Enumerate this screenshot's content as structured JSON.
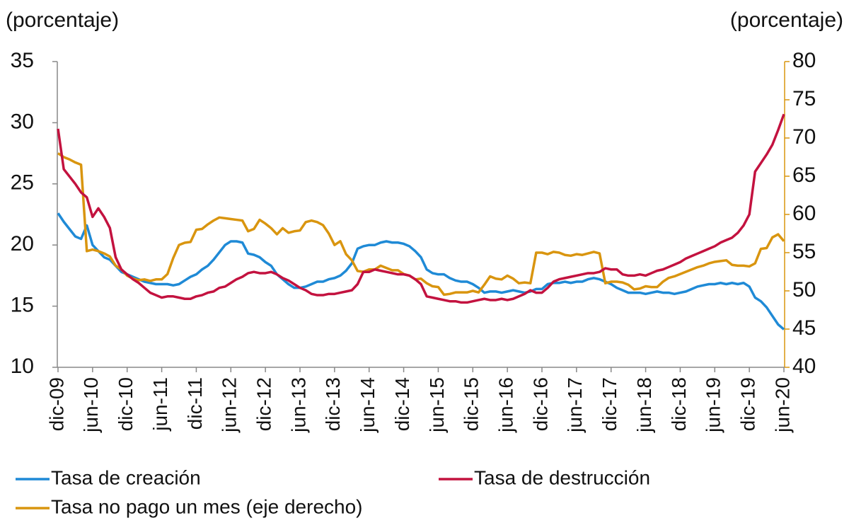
{
  "chart_data": {
    "type": "line",
    "y_label": "(porcentaje)",
    "y2_label": "(porcentaje)",
    "categories": [
      "dic-09",
      null,
      null,
      null,
      null,
      null,
      "jun-10",
      null,
      null,
      null,
      null,
      null,
      "dic-10",
      null,
      null,
      null,
      null,
      null,
      "jun-11",
      null,
      null,
      null,
      null,
      null,
      "dic-11",
      null,
      null,
      null,
      null,
      null,
      "jun-12",
      null,
      null,
      null,
      null,
      null,
      "dic-12",
      null,
      null,
      null,
      null,
      null,
      "jun-13",
      null,
      null,
      null,
      null,
      null,
      "dic-13",
      null,
      null,
      null,
      null,
      null,
      "jun-14",
      null,
      null,
      null,
      null,
      null,
      "dic-14",
      null,
      null,
      null,
      null,
      null,
      "jun-15",
      null,
      null,
      null,
      null,
      null,
      "dic-15",
      null,
      null,
      null,
      null,
      null,
      "jun-16",
      null,
      null,
      null,
      null,
      null,
      "dic-16",
      null,
      null,
      null,
      null,
      null,
      "jun-17",
      null,
      null,
      null,
      null,
      null,
      "dic-17",
      null,
      null,
      null,
      null,
      null,
      "jun-18",
      null,
      null,
      null,
      null,
      null,
      "dic-18",
      null,
      null,
      null,
      null,
      null,
      "jun-19",
      null,
      null,
      null,
      null,
      null,
      "dic-19",
      null,
      null,
      null,
      null,
      null,
      "jun-20"
    ],
    "series": [
      {
        "name": "Tasa de creación",
        "color": "#1f8ad6",
        "values": [
          22.6,
          21.9,
          21.3,
          20.7,
          20.5,
          21.6,
          20.0,
          19.5,
          19.0,
          18.8,
          18.3,
          17.8,
          17.6,
          17.4,
          17.2,
          17.0,
          16.9,
          16.8,
          16.8,
          16.8,
          16.7,
          16.8,
          17.1,
          17.4,
          17.6,
          18.0,
          18.3,
          18.8,
          19.4,
          20.0,
          20.3,
          20.3,
          20.2,
          19.3,
          19.2,
          19.0,
          18.6,
          18.3,
          17.6,
          17.2,
          16.8,
          16.5,
          16.5,
          16.6,
          16.8,
          17.0,
          17.0,
          17.2,
          17.3,
          17.5,
          17.9,
          18.5,
          19.7,
          19.9,
          20.0,
          20.0,
          20.2,
          20.3,
          20.2,
          20.2,
          20.1,
          19.9,
          19.5,
          19.0,
          18.0,
          17.7,
          17.6,
          17.6,
          17.3,
          17.1,
          17.0,
          17.0,
          16.8,
          16.5,
          16.1,
          16.2,
          16.2,
          16.1,
          16.2,
          16.3,
          16.2,
          16.1,
          16.2,
          16.4,
          16.4,
          16.8,
          16.9,
          16.9,
          17.0,
          16.9,
          17.0,
          17.0,
          17.2,
          17.3,
          17.2,
          17.0,
          16.8,
          16.5,
          16.3,
          16.1,
          16.1,
          16.1,
          16.0,
          16.1,
          16.2,
          16.1,
          16.1,
          16.0,
          16.1,
          16.2,
          16.4,
          16.6,
          16.7,
          16.8,
          16.8,
          16.9,
          16.8,
          16.9,
          16.8,
          16.9,
          16.6,
          15.7,
          15.4,
          14.9,
          14.2,
          13.5,
          13.1
        ]
      },
      {
        "name": "Tasa de destrucción",
        "color": "#c3123f",
        "values": [
          29.5,
          26.2,
          25.6,
          25.0,
          24.3,
          23.9,
          22.3,
          23.0,
          22.3,
          21.4,
          19.0,
          18.0,
          17.6,
          17.2,
          16.9,
          16.5,
          16.1,
          15.9,
          15.7,
          15.8,
          15.8,
          15.7,
          15.6,
          15.6,
          15.8,
          15.9,
          16.1,
          16.2,
          16.5,
          16.6,
          16.9,
          17.2,
          17.4,
          17.7,
          17.8,
          17.7,
          17.7,
          17.8,
          17.6,
          17.3,
          17.1,
          16.8,
          16.5,
          16.3,
          16.0,
          15.9,
          15.9,
          16.0,
          16.0,
          16.1,
          16.2,
          16.3,
          16.8,
          17.8,
          17.8,
          18.0,
          17.9,
          17.8,
          17.7,
          17.6,
          17.6,
          17.5,
          17.2,
          16.8,
          15.8,
          15.7,
          15.6,
          15.5,
          15.4,
          15.4,
          15.3,
          15.3,
          15.4,
          15.5,
          15.6,
          15.5,
          15.5,
          15.6,
          15.5,
          15.6,
          15.8,
          16.0,
          16.3,
          16.1,
          16.1,
          16.5,
          17.0,
          17.2,
          17.3,
          17.4,
          17.5,
          17.6,
          17.7,
          17.7,
          17.8,
          18.1,
          18.0,
          18.0,
          17.6,
          17.5,
          17.5,
          17.6,
          17.5,
          17.7,
          17.9,
          18.0,
          18.2,
          18.4,
          18.6,
          18.9,
          19.1,
          19.3,
          19.5,
          19.7,
          19.9,
          20.2,
          20.4,
          20.6,
          21.0,
          21.6,
          22.5,
          26.0,
          26.7,
          27.4,
          28.2,
          29.4,
          30.7
        ]
      },
      {
        "name": "Tasa no pago un mes (eje derecho)",
        "color": "#d9950f",
        "axis": "y2",
        "values": [
          68.0,
          67.5,
          67.2,
          66.8,
          66.5,
          55.2,
          55.4,
          55.2,
          54.9,
          54.5,
          53.3,
          52.8,
          52.0,
          51.6,
          51.4,
          51.5,
          51.3,
          51.5,
          51.5,
          52.2,
          54.3,
          56.0,
          56.3,
          56.4,
          58.0,
          58.1,
          58.7,
          59.2,
          59.6,
          59.5,
          59.4,
          59.3,
          59.2,
          57.8,
          58.1,
          59.3,
          58.8,
          58.2,
          57.4,
          58.2,
          57.6,
          57.8,
          57.9,
          59.0,
          59.2,
          59.0,
          58.6,
          57.5,
          56.0,
          56.5,
          54.8,
          54.0,
          52.6,
          52.5,
          52.8,
          52.8,
          53.3,
          53.0,
          52.7,
          52.7,
          52.2,
          52.0,
          51.5,
          51.6,
          51.0,
          50.6,
          50.5,
          49.5,
          49.6,
          49.8,
          49.8,
          49.8,
          50.0,
          49.8,
          50.8,
          51.9,
          51.6,
          51.5,
          52.0,
          51.6,
          51.0,
          51.1,
          51.0,
          55.0,
          55.0,
          54.8,
          55.1,
          55.0,
          54.7,
          54.6,
          54.8,
          54.7,
          54.9,
          55.1,
          54.9,
          51.0,
          51.2,
          51.2,
          51.1,
          50.8,
          50.2,
          50.3,
          50.6,
          50.5,
          50.5,
          51.2,
          51.7,
          51.9,
          52.2,
          52.5,
          52.8,
          53.1,
          53.3,
          53.6,
          53.8,
          53.9,
          54.0,
          53.4,
          53.3,
          53.3,
          53.2,
          53.6,
          55.5,
          55.6,
          57.0,
          57.4,
          56.5
        ]
      }
    ],
    "ylim": [
      10,
      35
    ],
    "yticks": [
      10,
      15,
      20,
      25,
      30,
      35
    ],
    "y2lim": [
      40,
      80
    ],
    "y2ticks": [
      40,
      45,
      50,
      55,
      60,
      65,
      70,
      75,
      80
    ],
    "y2_color": "#d9950f",
    "grid": false
  }
}
